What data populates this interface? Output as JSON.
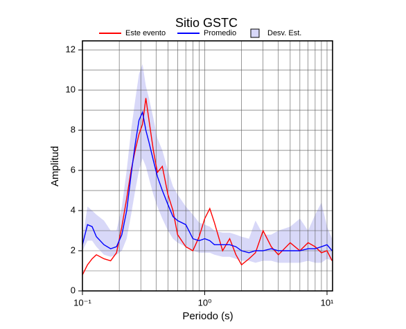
{
  "chart_data": {
    "type": "line",
    "title": "Sitio GSTC",
    "xlabel": "Periodo (s)",
    "ylabel": "Amplitud",
    "xscale": "log",
    "grid": true,
    "legend": "top",
    "xlim": [
      0.1,
      11.1
    ],
    "ylim": [
      0,
      12.45
    ],
    "xticks": [
      {
        "value": 0.1,
        "label": "10⁻¹"
      },
      {
        "value": 1,
        "label": "10⁰"
      },
      {
        "value": 10,
        "label": "10¹"
      }
    ],
    "xminor": [
      0.2,
      0.3,
      0.4,
      0.5,
      0.6,
      0.7,
      0.8,
      0.9,
      2,
      3,
      4,
      5,
      6,
      7,
      8,
      9
    ],
    "yticks": [
      0,
      2,
      4,
      6,
      8,
      10,
      12
    ],
    "yminor": [
      1,
      3,
      5,
      7,
      9,
      11
    ],
    "x": [
      0.1,
      0.11,
      0.12,
      0.13,
      0.15,
      0.17,
      0.19,
      0.21,
      0.23,
      0.25,
      0.27,
      0.29,
      0.31,
      0.33,
      0.35,
      0.38,
      0.41,
      0.45,
      0.5,
      0.55,
      0.6,
      0.7,
      0.8,
      0.9,
      1.0,
      1.1,
      1.2,
      1.4,
      1.6,
      1.8,
      2.0,
      2.3,
      2.6,
      3.0,
      3.5,
      4,
      5,
      6,
      7,
      8,
      9,
      10,
      11
    ],
    "band": {
      "name": "Desv. Est.",
      "color": "#d8d8f8",
      "edge": "#000000",
      "upper": [
        2.6,
        4.2,
        4.0,
        3.8,
        3.5,
        3.0,
        3.0,
        4.2,
        6.0,
        8.0,
        9.5,
        10.8,
        11.3,
        10.2,
        9.6,
        8.6,
        7.6,
        7.0,
        6.0,
        5.2,
        4.8,
        4.2,
        3.8,
        3.4,
        3.3,
        3.2,
        3.0,
        2.9,
        2.9,
        2.8,
        2.7,
        2.6,
        3.5,
        2.8,
        2.8,
        3.0,
        3.2,
        3.6,
        3.0,
        3.8,
        4.4,
        3.2,
        2.6
      ],
      "lower": [
        2.0,
        2.5,
        2.5,
        2.2,
        1.8,
        1.7,
        1.8,
        2.0,
        2.6,
        3.8,
        5.0,
        6.0,
        6.6,
        6.2,
        5.6,
        4.8,
        4.2,
        3.6,
        3.0,
        2.6,
        2.4,
        2.2,
        2.0,
        1.9,
        1.9,
        1.9,
        1.8,
        1.7,
        1.7,
        1.6,
        1.5,
        1.5,
        1.4,
        1.5,
        1.5,
        1.4,
        1.4,
        1.4,
        1.5,
        1.4,
        1.4,
        1.6,
        1.5
      ]
    },
    "series": [
      {
        "name": "Este evento",
        "color": "#ff0000",
        "values": [
          0.8,
          1.3,
          1.6,
          1.8,
          1.6,
          1.5,
          1.9,
          3.2,
          4.6,
          6.0,
          7.0,
          7.8,
          8.3,
          9.6,
          8.5,
          7.0,
          5.9,
          6.2,
          4.8,
          4.0,
          2.8,
          2.2,
          2.0,
          2.7,
          3.6,
          4.1,
          3.4,
          2.0,
          2.6,
          1.8,
          1.3,
          1.6,
          1.9,
          3.0,
          2.2,
          1.8,
          2.4,
          2.0,
          2.4,
          2.2,
          1.9,
          2.0,
          1.5
        ]
      },
      {
        "name": "Promedio",
        "color": "#0000ff",
        "values": [
          2.3,
          3.3,
          3.2,
          2.7,
          2.3,
          2.1,
          2.2,
          2.8,
          4.0,
          5.8,
          7.3,
          8.5,
          8.9,
          8.0,
          7.4,
          6.5,
          5.7,
          5.0,
          4.3,
          3.7,
          3.5,
          3.3,
          2.6,
          2.5,
          2.6,
          2.5,
          2.3,
          2.3,
          2.3,
          2.2,
          2.0,
          1.9,
          2.0,
          2.0,
          2.1,
          2.0,
          2.0,
          2.0,
          2.1,
          2.1,
          2.2,
          2.3,
          2.0
        ]
      }
    ]
  }
}
